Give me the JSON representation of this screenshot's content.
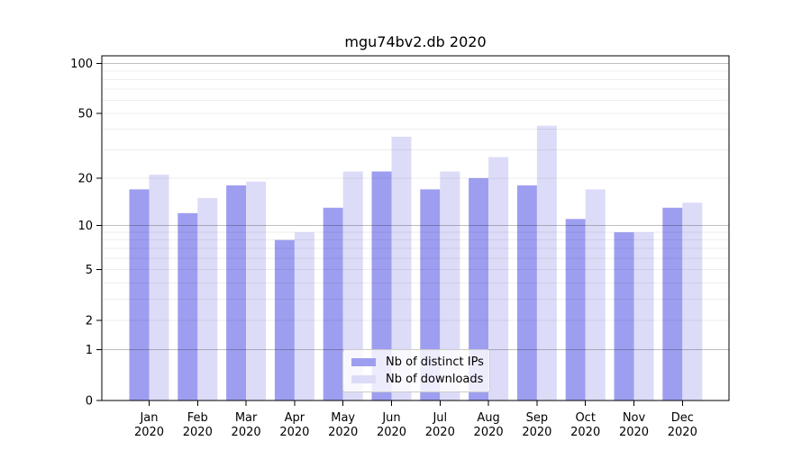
{
  "title": "mgu74bv2.db 2020",
  "chart_data": {
    "type": "bar",
    "title": "mgu74bv2.db 2020",
    "categories": [
      "Jan 2020",
      "Feb 2020",
      "Mar 2020",
      "Apr 2020",
      "May 2020",
      "Jun 2020",
      "Jul 2020",
      "Aug 2020",
      "Sep 2020",
      "Oct 2020",
      "Nov 2020",
      "Dec 2020"
    ],
    "x_tick_months": [
      "Jan",
      "Feb",
      "Mar",
      "Apr",
      "May",
      "Jun",
      "Jul",
      "Aug",
      "Sep",
      "Oct",
      "Nov",
      "Dec"
    ],
    "x_tick_year": "2020",
    "series": [
      {
        "name": "Nb of distinct IPs",
        "color": "#9e9ef0",
        "values": [
          17,
          12,
          18,
          8,
          13,
          22,
          17,
          20,
          18,
          11,
          9,
          13
        ]
      },
      {
        "name": "Nb of downloads",
        "color": "#dcdcf8",
        "values": [
          21,
          15,
          19,
          9,
          22,
          36,
          22,
          27,
          42,
          17,
          9,
          14
        ]
      }
    ],
    "xlabel": "",
    "ylabel": "",
    "yscale": "log1p",
    "ylim": [
      0,
      111
    ],
    "ytick_values": [
      100,
      50,
      20,
      10,
      5,
      2,
      1,
      0
    ],
    "ytick_labels": [
      "100",
      "50",
      "20",
      "10",
      "5",
      "2",
      "1",
      "0"
    ],
    "major_gridlines": [
      1,
      10,
      100
    ],
    "minor_gridlines": [
      2,
      3,
      4,
      5,
      6,
      7,
      8,
      9,
      20,
      30,
      40,
      50,
      60,
      70,
      80,
      90
    ],
    "grid": "on",
    "legend_position": "lower center"
  },
  "colors": {
    "major_grid": "rgba(0,0,0,0.25)",
    "minor_grid": "rgba(0,0,0,0.07)",
    "spine": "#000000",
    "background": "#ffffff"
  }
}
